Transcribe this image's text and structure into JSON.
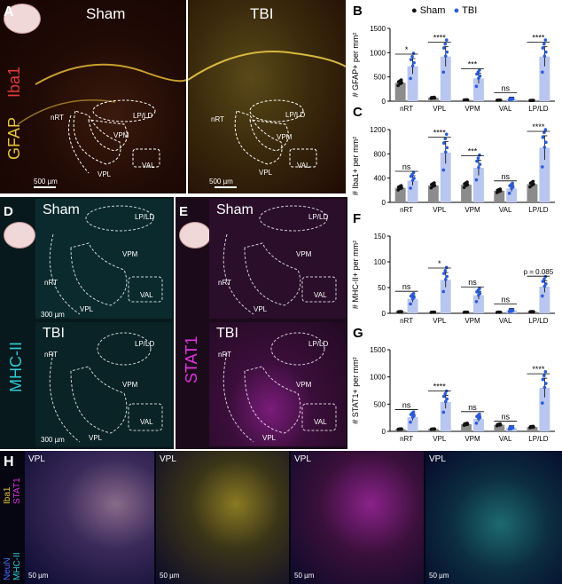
{
  "panels": {
    "A": "A",
    "B": "B",
    "C": "C",
    "D": "D",
    "E": "E",
    "F": "F",
    "G": "G",
    "H": "H"
  },
  "panelA": {
    "sham": "Sham",
    "tbi": "TBI",
    "stain1": "Iba1",
    "stain2": "GFAP",
    "scale": "500 µm",
    "regions": {
      "nrt": "nRT",
      "vpl": "VPL",
      "vpm": "VPM",
      "val": "VAL",
      "lpld": "LP/LD"
    }
  },
  "panelD": {
    "top": "Sham",
    "bottom": "TBI",
    "stain": "MHC-II",
    "scale": "300 µm"
  },
  "panelE": {
    "top": "Sham",
    "bottom": "TBI",
    "stain": "STAT1"
  },
  "panelH": {
    "region": "VPL",
    "stains": {
      "iba1": "Iba1",
      "stat1": "STAT1",
      "neun": "NeuN",
      "mhc": "MHC-II"
    },
    "scale": "50 µm"
  },
  "legend": {
    "sham": "Sham",
    "tbi": "TBI"
  },
  "colors": {
    "sham": "#8c8c8c",
    "tbi": "#b9c6ef",
    "dot_tbi": "#2a5bd7",
    "dot_sham": "#111111",
    "iba1": "#e23b3b",
    "gfap": "#e6c53a",
    "mhc": "#33c9d6",
    "stat1": "#e033e0"
  },
  "chart_data": [
    {
      "panel": "B",
      "type": "bar",
      "ylabel": "# GFAP+ per mm²",
      "ylim": [
        0,
        1500
      ],
      "yticks": [
        0,
        500,
        1000,
        1500
      ],
      "categories": [
        "nRT",
        "VPL",
        "VPM",
        "VAL",
        "LP/LD"
      ],
      "series": [
        {
          "name": "Sham",
          "values": [
            380,
            70,
            25,
            20,
            15
          ]
        },
        {
          "name": "TBI",
          "values": [
            720,
            920,
            470,
            40,
            920
          ]
        }
      ],
      "significance": [
        "*",
        "****",
        "***",
        "ns",
        "****"
      ]
    },
    {
      "panel": "C",
      "type": "bar",
      "ylabel": "# Iba1+ per mm²",
      "ylim": [
        0,
        1200
      ],
      "yticks": [
        0,
        400,
        800,
        1200
      ],
      "categories": [
        "nRT",
        "VPL",
        "VPM",
        "VAL",
        "LP/LD"
      ],
      "series": [
        {
          "name": "Sham",
          "values": [
            240,
            280,
            290,
            190,
            300
          ]
        },
        {
          "name": "TBI",
          "values": [
            360,
            820,
            570,
            230,
            900
          ]
        }
      ],
      "significance": [
        "ns",
        "****",
        "***",
        "ns",
        "****"
      ]
    },
    {
      "panel": "F",
      "type": "bar",
      "ylabel": "# MHC-II+ per mm²",
      "ylim": [
        0,
        150
      ],
      "yticks": [
        0,
        50,
        100,
        150
      ],
      "categories": [
        "nRT",
        "VPL",
        "VPM",
        "VAL",
        "LP/LD"
      ],
      "series": [
        {
          "name": "Sham",
          "values": [
            3,
            2,
            2,
            2,
            3
          ]
        },
        {
          "name": "TBI",
          "values": [
            28,
            65,
            35,
            5,
            52
          ]
        }
      ],
      "significance": [
        "ns",
        "*",
        "ns",
        "ns",
        "p = 0.085"
      ]
    },
    {
      "panel": "G",
      "type": "bar",
      "ylabel": "# STAT1+ per mm²",
      "ylim": [
        0,
        1500
      ],
      "yticks": [
        0,
        500,
        1000,
        1500
      ],
      "categories": [
        "nRT",
        "VPL",
        "VPM",
        "VAL",
        "LP/LD"
      ],
      "series": [
        {
          "name": "Sham",
          "values": [
            40,
            40,
            130,
            120,
            80
          ]
        },
        {
          "name": "TBI",
          "values": [
            260,
            540,
            230,
            60,
            800
          ]
        }
      ],
      "significance": [
        "ns",
        "****",
        "ns",
        "ns",
        "****"
      ]
    }
  ]
}
